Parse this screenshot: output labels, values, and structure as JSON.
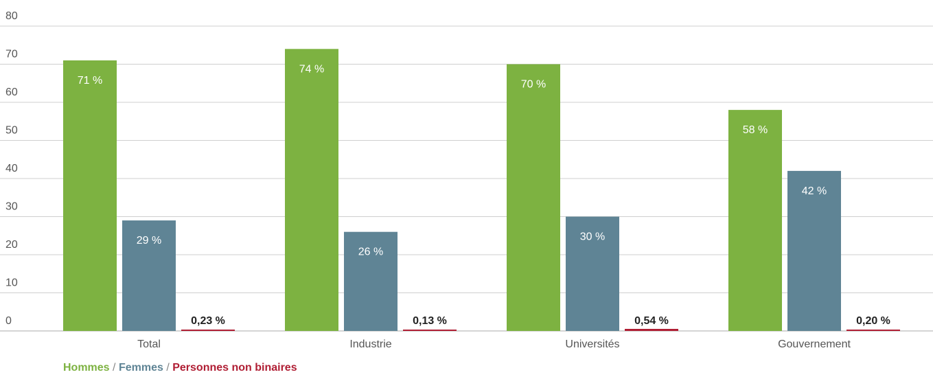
{
  "chart_data": {
    "type": "bar",
    "categories": [
      "Total",
      "Industrie",
      "Universités",
      "Gouvernement"
    ],
    "series": [
      {
        "name": "Hommes",
        "values": [
          71,
          74,
          70,
          58
        ],
        "labels": [
          "71 %",
          "74 %",
          "70 %",
          "58 %"
        ],
        "color": "#7db241"
      },
      {
        "name": "Femmes",
        "values": [
          29,
          26,
          30,
          42
        ],
        "labels": [
          "29 %",
          "26 %",
          "30 %",
          "42 %"
        ],
        "color": "#5f8495"
      },
      {
        "name": "Personnes non binaires",
        "values": [
          0.23,
          0.13,
          0.54,
          0.2
        ],
        "labels": [
          "0,23 %",
          "0,13 %",
          "0,54 %",
          "0,20 %"
        ],
        "color": "#b01e34"
      }
    ],
    "ylim": [
      0,
      80
    ],
    "yticks": [
      0,
      10,
      20,
      30,
      40,
      50,
      60,
      70,
      80
    ],
    "grid": true,
    "legend_position": "bottom-left"
  },
  "legend": {
    "men": "Hommes",
    "women": "Femmes",
    "nonbinary": "Personnes non binaires",
    "separator": "/"
  }
}
